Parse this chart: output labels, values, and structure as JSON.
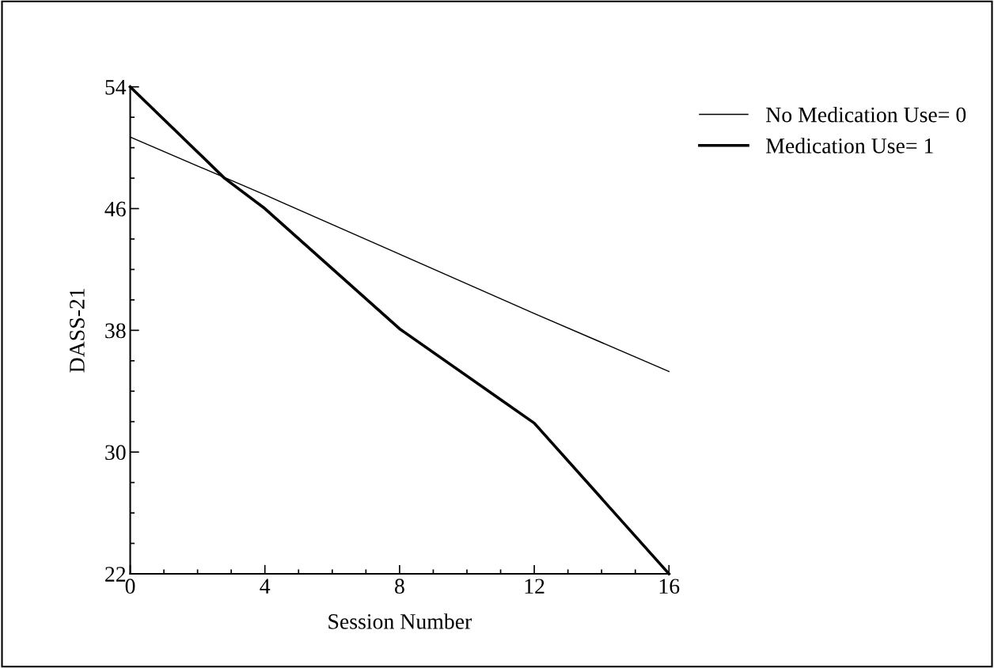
{
  "chart_data": {
    "type": "line",
    "xlabel": "Session Number",
    "ylabel": "DASS-21",
    "series": [
      {
        "name": "No Medication Use= 0",
        "color": "#000000",
        "x": [
          0,
          4,
          8,
          12,
          16
        ],
        "values": [
          50.7,
          46.9,
          43.0,
          39.1,
          35.3
        ]
      },
      {
        "name": "Medication Use= 1",
        "color": "#000000",
        "x": [
          0,
          2.8,
          4,
          8,
          12,
          16
        ],
        "values": [
          54,
          48.0,
          46,
          38.1,
          31.9,
          22
        ]
      }
    ],
    "xlim": [
      0,
      16
    ],
    "xticks": [
      0,
      4,
      8,
      12,
      16
    ],
    "ylim": [
      22,
      54
    ],
    "yticks": [
      22,
      30,
      38,
      46,
      54
    ],
    "legend": "right",
    "grid": false,
    "marker": "none",
    "line_style": "solid"
  }
}
